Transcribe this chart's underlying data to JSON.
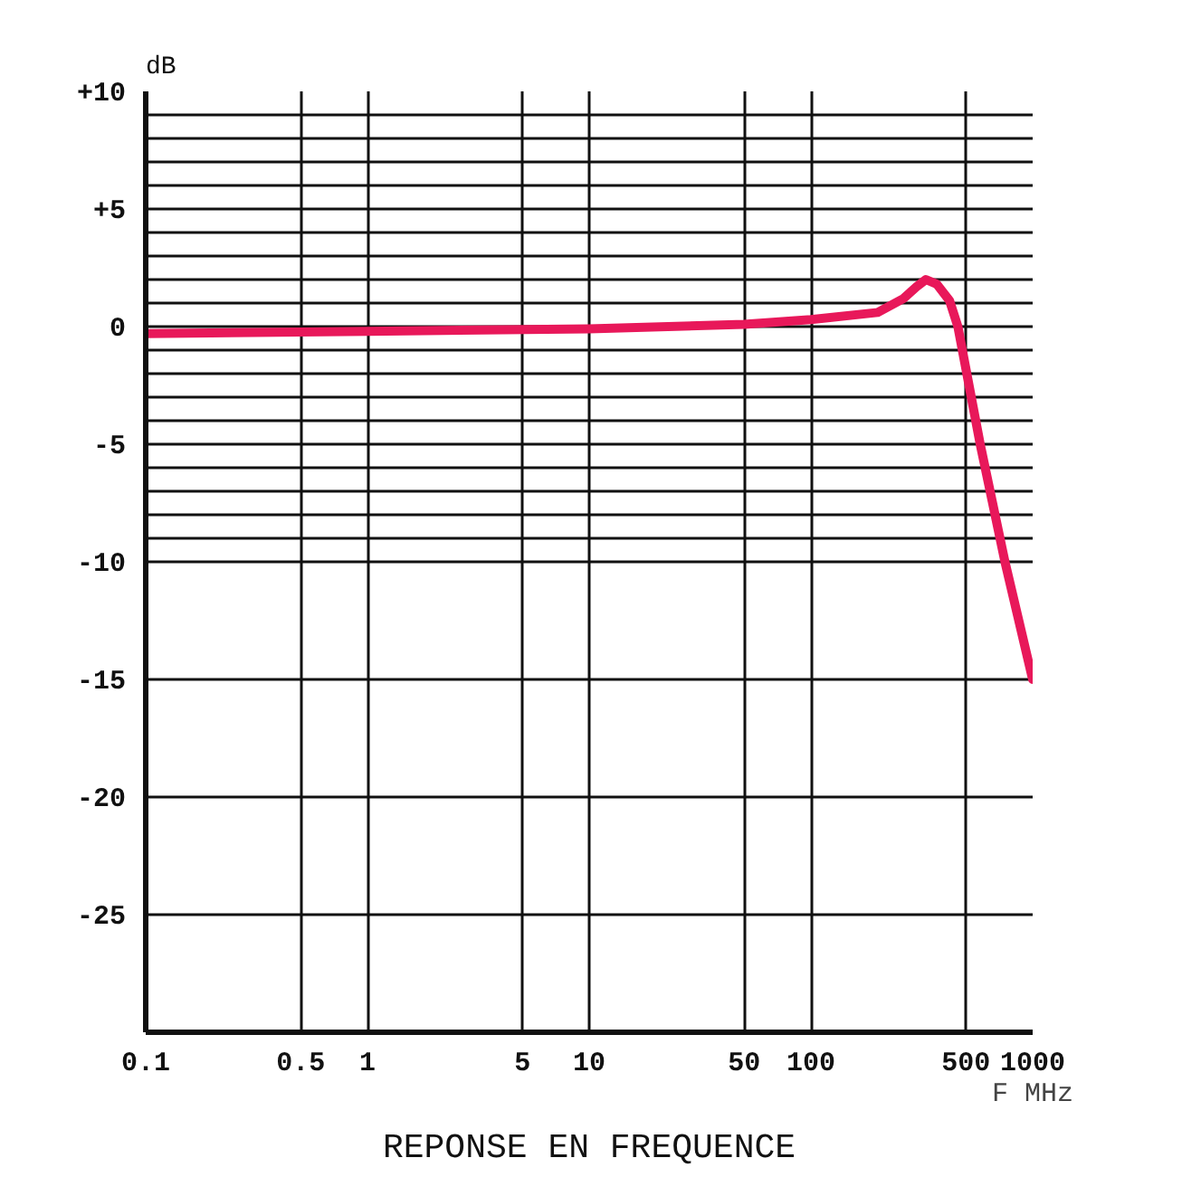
{
  "chart_data": {
    "type": "line",
    "title": "REPONSE EN FREQUENCE",
    "xlabel": "F MHz",
    "ylabel": "dB",
    "log": "x",
    "grid": true,
    "marker": "none",
    "line_style": "solid",
    "xlim": [
      0.1,
      1000
    ],
    "xticks": [
      0.1,
      0.5,
      1,
      5,
      10,
      50,
      100,
      500,
      1000
    ],
    "ylim": [
      -30,
      10
    ],
    "yticks": [
      {
        "value": 10,
        "label": "+10"
      },
      {
        "value": 9,
        "label": null
      },
      {
        "value": 8,
        "label": null
      },
      {
        "value": 7,
        "label": null
      },
      {
        "value": 6,
        "label": null
      },
      {
        "value": 5,
        "label": "+5"
      },
      {
        "value": 4,
        "label": null
      },
      {
        "value": 3,
        "label": null
      },
      {
        "value": 2,
        "label": null
      },
      {
        "value": 1,
        "label": null
      },
      0,
      {
        "value": -1,
        "label": null
      },
      {
        "value": -2,
        "label": null
      },
      {
        "value": -3,
        "label": null
      },
      {
        "value": -4,
        "label": null
      },
      -5,
      {
        "value": -6,
        "label": null
      },
      {
        "value": -7,
        "label": null
      },
      {
        "value": -8,
        "label": null
      },
      {
        "value": -9,
        "label": null
      },
      -10,
      -15,
      -20,
      -25
    ],
    "series": [
      {
        "color": "#e8185a",
        "x": [
          0.1,
          1,
          10,
          50,
          100,
          200,
          262,
          300,
          330,
          370,
          422,
          460,
          580,
          750,
          1000
        ],
        "values": [
          -0.3,
          -0.2,
          -0.1,
          0.1,
          0.3,
          0.6,
          1.2,
          1.7,
          2.0,
          1.8,
          1.1,
          0,
          -5,
          -10,
          -15
        ]
      }
    ]
  }
}
